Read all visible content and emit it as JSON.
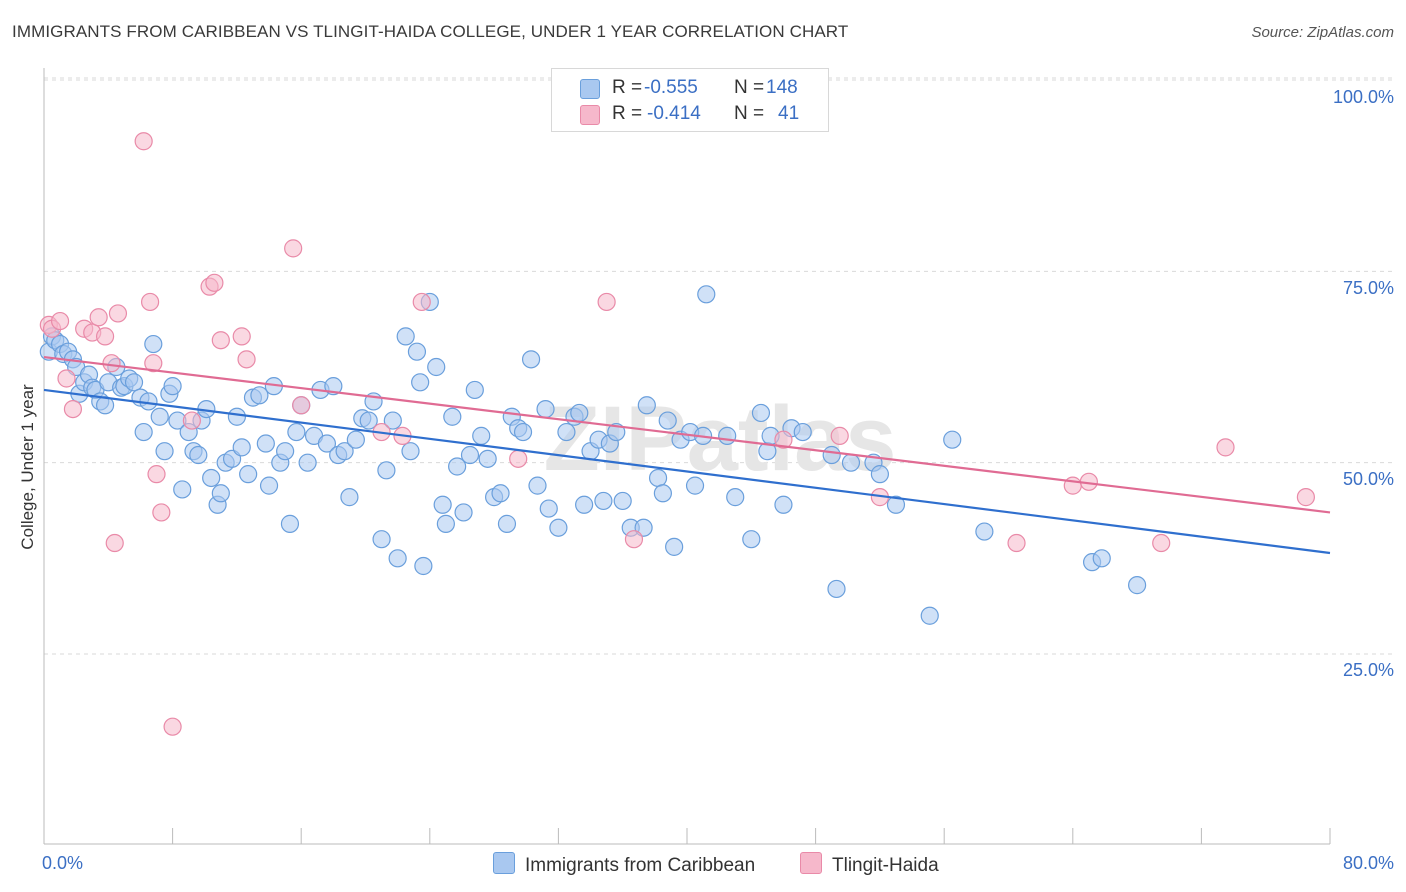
{
  "header": {
    "title": "IMMIGRANTS FROM CARIBBEAN VS TLINGIT-HAIDA COLLEGE, UNDER 1 YEAR CORRELATION CHART",
    "source": "Source: ZipAtlas.com"
  },
  "legend": {
    "rows": [
      {
        "r_label": "R = ",
        "r_value": "-0.555",
        "n_label": "N = ",
        "n_value": "148"
      },
      {
        "r_label": "R = ",
        "r_value": "-0.414",
        "n_label": "N = ",
        "n_value": "41"
      }
    ]
  },
  "watermark": "ZIPatlas",
  "colors": {
    "blue_fill": "#a9c8f0",
    "blue_stroke": "#6a9fdc",
    "blue_line": "#2f6fce",
    "pink_fill": "#f6b8cb",
    "pink_stroke": "#e98aa8",
    "pink_line": "#e06b93",
    "tick_text": "#3b6fc4",
    "grid": "#d9d9d9"
  },
  "chart_data": {
    "type": "scatter",
    "title": "IMMIGRANTS FROM CARIBBEAN VS TLINGIT-HAIDA COLLEGE, UNDER 1 YEAR CORRELATION CHART",
    "xlabel": "",
    "ylabel": "College, Under 1 year",
    "xlim": [
      0,
      80
    ],
    "ylim": [
      0,
      105
    ],
    "x_tick_labels": [
      "0.0%",
      "80.0%"
    ],
    "y_ticks": [
      25,
      50,
      75,
      100
    ],
    "y_tick_labels": [
      "25.0%",
      "50.0%",
      "75.0%",
      "100.0%"
    ],
    "grid": true,
    "legend_position": "bottom",
    "series": [
      {
        "name": "Immigrants from Caribbean",
        "color": "#a9c8f0",
        "trend": {
          "x": [
            0,
            80
          ],
          "y": [
            59.5,
            38.2
          ]
        },
        "points": [
          [
            0.3,
            64.5
          ],
          [
            0.5,
            66.5
          ],
          [
            0.7,
            66
          ],
          [
            1.0,
            65.5
          ],
          [
            1.2,
            64.2
          ],
          [
            1.5,
            64.5
          ],
          [
            1.8,
            63.5
          ],
          [
            2.0,
            62.5
          ],
          [
            2.2,
            59
          ],
          [
            2.5,
            60.5
          ],
          [
            2.8,
            61.5
          ],
          [
            3.0,
            59.8
          ],
          [
            3.2,
            59.5
          ],
          [
            3.5,
            58
          ],
          [
            3.8,
            57.5
          ],
          [
            4.0,
            60.5
          ],
          [
            4.5,
            62.5
          ],
          [
            4.8,
            59.8
          ],
          [
            5.0,
            60
          ],
          [
            5.3,
            61
          ],
          [
            5.6,
            60.5
          ],
          [
            6.0,
            58.5
          ],
          [
            6.2,
            54
          ],
          [
            6.5,
            58
          ],
          [
            6.8,
            65.5
          ],
          [
            7.2,
            56
          ],
          [
            7.5,
            51.5
          ],
          [
            7.8,
            59
          ],
          [
            8.0,
            60
          ],
          [
            8.3,
            55.5
          ],
          [
            8.6,
            46.5
          ],
          [
            9.0,
            54
          ],
          [
            9.3,
            51.5
          ],
          [
            9.6,
            51
          ],
          [
            9.8,
            55.5
          ],
          [
            10.1,
            57
          ],
          [
            10.4,
            48
          ],
          [
            10.8,
            44.5
          ],
          [
            11.0,
            46
          ],
          [
            11.3,
            50
          ],
          [
            11.7,
            50.5
          ],
          [
            12.0,
            56
          ],
          [
            12.3,
            52
          ],
          [
            12.7,
            48.5
          ],
          [
            13.0,
            58.5
          ],
          [
            13.4,
            58.8
          ],
          [
            13.8,
            52.5
          ],
          [
            14.0,
            47
          ],
          [
            14.3,
            60
          ],
          [
            14.7,
            50
          ],
          [
            15.0,
            51.5
          ],
          [
            15.3,
            42
          ],
          [
            15.7,
            54
          ],
          [
            16.0,
            57.5
          ],
          [
            16.4,
            50
          ],
          [
            16.8,
            53.5
          ],
          [
            17.2,
            59.5
          ],
          [
            17.6,
            52.5
          ],
          [
            18.0,
            60
          ],
          [
            18.3,
            51
          ],
          [
            18.7,
            51.5
          ],
          [
            19.0,
            45.5
          ],
          [
            19.4,
            53
          ],
          [
            19.8,
            55.8
          ],
          [
            20.2,
            55.5
          ],
          [
            20.5,
            58
          ],
          [
            21.0,
            40
          ],
          [
            21.3,
            49
          ],
          [
            21.7,
            55.5
          ],
          [
            22.0,
            37.5
          ],
          [
            22.5,
            66.5
          ],
          [
            22.8,
            51.5
          ],
          [
            23.2,
            64.5
          ],
          [
            23.4,
            60.5
          ],
          [
            23.6,
            36.5
          ],
          [
            24.0,
            71
          ],
          [
            24.4,
            62.5
          ],
          [
            24.8,
            44.5
          ],
          [
            25.0,
            42
          ],
          [
            25.4,
            56
          ],
          [
            25.7,
            49.5
          ],
          [
            26.1,
            43.5
          ],
          [
            26.5,
            51
          ],
          [
            26.8,
            59.5
          ],
          [
            27.2,
            53.5
          ],
          [
            27.6,
            50.5
          ],
          [
            28.0,
            45.5
          ],
          [
            28.4,
            46
          ],
          [
            28.8,
            42
          ],
          [
            29.1,
            56
          ],
          [
            29.5,
            54.5
          ],
          [
            29.8,
            54
          ],
          [
            30.3,
            63.5
          ],
          [
            30.7,
            47
          ],
          [
            31.2,
            57
          ],
          [
            31.4,
            44
          ],
          [
            32.0,
            41.5
          ],
          [
            32.5,
            54
          ],
          [
            33.0,
            56
          ],
          [
            33.3,
            56.5
          ],
          [
            33.6,
            44.5
          ],
          [
            34.0,
            51.5
          ],
          [
            34.5,
            53
          ],
          [
            34.8,
            45
          ],
          [
            35.2,
            52.5
          ],
          [
            35.6,
            54
          ],
          [
            36.0,
            45
          ],
          [
            36.5,
            41.5
          ],
          [
            37.3,
            41.5
          ],
          [
            37.5,
            57.5
          ],
          [
            38.2,
            48
          ],
          [
            38.5,
            46
          ],
          [
            38.8,
            55.5
          ],
          [
            39.2,
            39
          ],
          [
            39.6,
            53
          ],
          [
            40.2,
            54
          ],
          [
            40.5,
            47
          ],
          [
            41.0,
            53.5
          ],
          [
            41.2,
            72
          ],
          [
            42.5,
            53.5
          ],
          [
            43.0,
            45.5
          ],
          [
            44.0,
            40
          ],
          [
            44.6,
            56.5
          ],
          [
            45.0,
            51.5
          ],
          [
            45.2,
            53.5
          ],
          [
            46.0,
            44.5
          ],
          [
            46.5,
            54.5
          ],
          [
            47.2,
            54
          ],
          [
            49.0,
            51
          ],
          [
            49.3,
            33.5
          ],
          [
            50.2,
            50
          ],
          [
            51.6,
            50
          ],
          [
            52.0,
            48.5
          ],
          [
            53.0,
            44.5
          ],
          [
            55.1,
            30
          ],
          [
            56.5,
            53
          ],
          [
            58.5,
            41
          ],
          [
            65.2,
            37
          ],
          [
            65.8,
            37.5
          ],
          [
            68.0,
            34
          ]
        ]
      },
      {
        "name": "Tlingit-Haida",
        "color": "#f6b8cb",
        "trend": {
          "x": [
            0,
            80
          ],
          "y": [
            63.8,
            43.5
          ]
        },
        "points": [
          [
            0.3,
            68
          ],
          [
            0.5,
            67.5
          ],
          [
            1.0,
            68.5
          ],
          [
            1.4,
            61
          ],
          [
            1.8,
            57
          ],
          [
            2.5,
            67.5
          ],
          [
            3.0,
            67
          ],
          [
            3.4,
            69
          ],
          [
            3.8,
            66.5
          ],
          [
            4.2,
            63
          ],
          [
            4.6,
            69.5
          ],
          [
            4.4,
            39.5
          ],
          [
            6.2,
            92
          ],
          [
            6.6,
            71
          ],
          [
            6.8,
            63
          ],
          [
            7.0,
            48.5
          ],
          [
            7.3,
            43.5
          ],
          [
            8.0,
            15.5
          ],
          [
            9.2,
            55.5
          ],
          [
            10.3,
            73
          ],
          [
            10.6,
            73.5
          ],
          [
            11.0,
            66
          ],
          [
            12.3,
            66.5
          ],
          [
            12.6,
            63.5
          ],
          [
            15.5,
            78
          ],
          [
            16.0,
            57.5
          ],
          [
            21.0,
            54
          ],
          [
            22.3,
            53.5
          ],
          [
            23.5,
            71
          ],
          [
            29.5,
            50.5
          ],
          [
            35.0,
            71
          ],
          [
            36.7,
            40
          ],
          [
            46.0,
            53
          ],
          [
            49.5,
            53.5
          ],
          [
            52.0,
            45.5
          ],
          [
            60.5,
            39.5
          ],
          [
            64.0,
            47
          ],
          [
            65.0,
            47.5
          ],
          [
            69.5,
            39.5
          ],
          [
            73.5,
            52
          ],
          [
            78.5,
            45.5
          ]
        ]
      }
    ]
  }
}
